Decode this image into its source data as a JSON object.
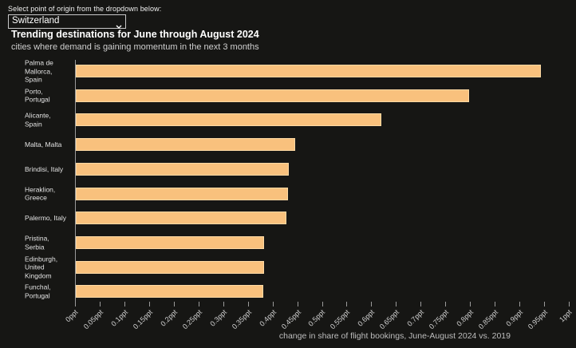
{
  "controls": {
    "label": "Select point of origin from the dropdown below:",
    "selected_origin": "Switzerland"
  },
  "header": {
    "title": "Trending destinations for June through August 2024",
    "subtitle": "cities where demand is gaining momentum in the next 3 months"
  },
  "chart_data": {
    "type": "bar",
    "orientation": "horizontal",
    "title": "Trending destinations for June through August 2024",
    "subtitle": "cities where demand is gaining momentum in the next 3 months",
    "xlabel": "change in share of flight bookings, June-August 2024 vs. 2019",
    "unit": "ppt",
    "xlim": [
      0,
      1
    ],
    "grid": false,
    "legend": false,
    "bar_color": "#f9c17d",
    "categories": [
      "Palma de Mallorca, Spain",
      "Porto, Portugal",
      "Alicante, Spain",
      "Malta, Malta",
      "Brindisi, Italy",
      "Heraklion, Greece",
      "Palermo, Italy",
      "Pristina, Serbia",
      "Edinburgh, United Kingdom",
      "Funchal, Portugal"
    ],
    "category_lines": [
      [
        "Palma de",
        "Mallorca,",
        "Spain"
      ],
      [
        "Porto,",
        "Portugal"
      ],
      [
        "Alicante,",
        "Spain"
      ],
      [
        "Malta, Malta"
      ],
      [
        "Brindisi, Italy"
      ],
      [
        "Heraklion,",
        "Greece"
      ],
      [
        "Palermo, Italy"
      ],
      [
        "Pristina,",
        "Serbia"
      ],
      [
        "Edinburgh,",
        "United",
        "Kingdom"
      ],
      [
        "Funchal,",
        "Portugal"
      ]
    ],
    "values": [
      0.942,
      0.796,
      0.619,
      0.445,
      0.431,
      0.429,
      0.427,
      0.381,
      0.381,
      0.38
    ],
    "x_ticks": [
      "0ppt",
      "0.05ppt",
      "0.1ppt",
      "0.15ppt",
      "0.2ppt",
      "0.25ppt",
      "0.3ppt",
      "0.35ppt",
      "0.4ppt",
      "0.45ppt",
      "0.5ppt",
      "0.55ppt",
      "0.6ppt",
      "0.65ppt",
      "0.7ppt",
      "0.75ppt",
      "0.8ppt",
      "0.85ppt",
      "0.9ppt",
      "0.95ppt",
      "1ppt"
    ]
  },
  "caption": "change in share of flight bookings, June-August 2024 vs. 2019",
  "colors": {
    "background": "#161614",
    "bar_fill": "#f9c17d",
    "bar_border": "#fdd9a4",
    "axis": "#9a9a9a",
    "title": "#ffffff",
    "subtitle": "#cfcfcf",
    "tick_label": "#cfcfcf"
  }
}
